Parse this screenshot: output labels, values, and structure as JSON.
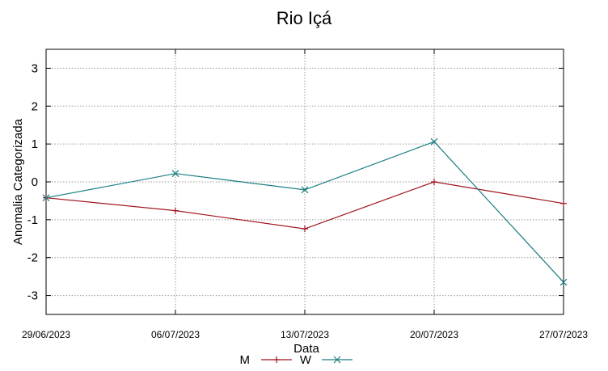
{
  "chart_data": {
    "type": "line",
    "title": "Rio Içá",
    "xlabel": "Data",
    "ylabel": "Anomalia Categorizada",
    "categories": [
      "29/06/2023",
      "06/07/2023",
      "13/07/2023",
      "20/07/2023",
      "27/07/2023"
    ],
    "ylim": [
      -3.5,
      3.5
    ],
    "yticks": [
      3,
      2,
      1,
      0,
      -1,
      -2,
      -3
    ],
    "ytick_labels": [
      "3",
      "2",
      "1",
      "0",
      "-1",
      "-2",
      "-3"
    ],
    "grid": true,
    "legend_position": "bottom-center",
    "series": [
      {
        "name": "M",
        "color": "#a0141e",
        "marker": "plus",
        "values": [
          -0.42,
          -0.76,
          -1.24,
          0.0,
          -0.57
        ]
      },
      {
        "name": "W",
        "color": "#1a7f82",
        "marker": "cross",
        "values": [
          -0.42,
          0.22,
          -0.21,
          1.06,
          -2.65
        ]
      }
    ]
  }
}
